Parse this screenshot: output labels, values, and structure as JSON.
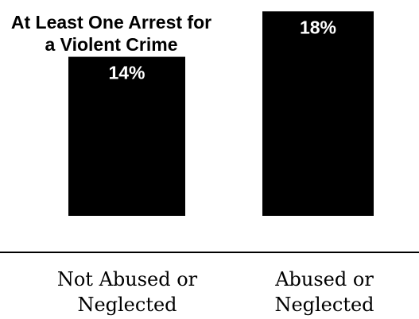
{
  "chart_data": {
    "type": "bar",
    "title": "At Least One Arrest for a Violent Crime",
    "title_lines": [
      "At Least One Arrest for",
      "a Violent Crime"
    ],
    "categories": [
      "Not Abused or Neglected",
      "Abused or Neglected"
    ],
    "category_lines": [
      [
        "Not Abused or",
        "Neglected"
      ],
      [
        "Abused or",
        "Neglected"
      ]
    ],
    "values": [
      14,
      18
    ],
    "value_labels": [
      "14%",
      "18%"
    ],
    "ylim": [
      0,
      19
    ],
    "xlabel": "",
    "ylabel": "",
    "grid": false,
    "bar_color": "#000000"
  }
}
